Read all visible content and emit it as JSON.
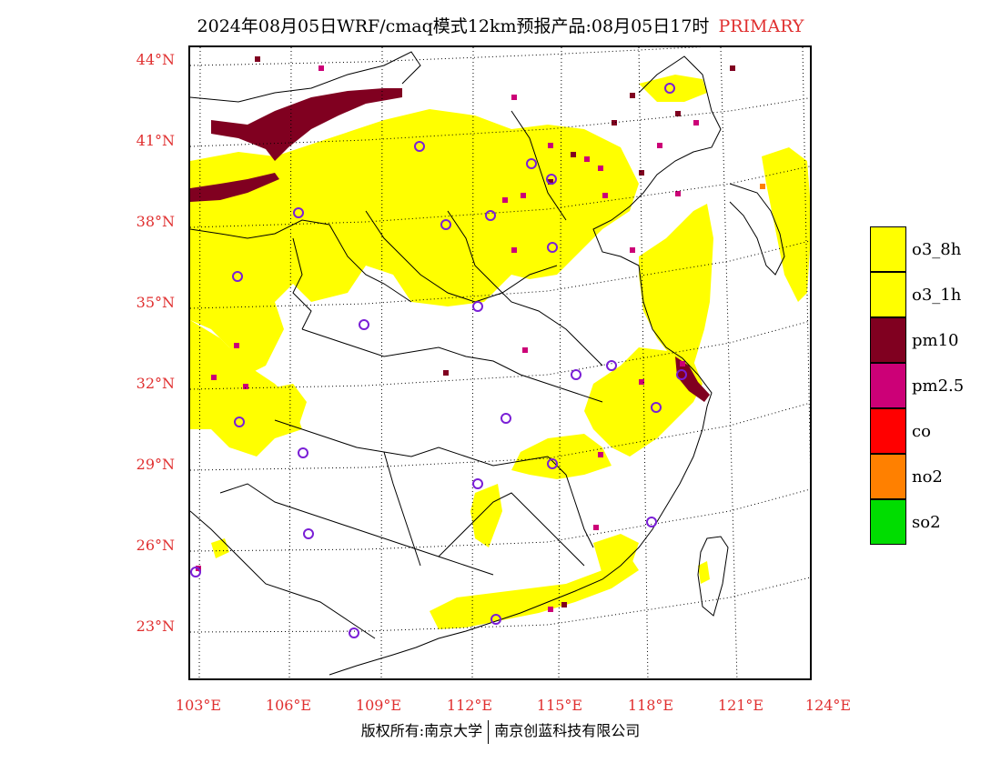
{
  "title": {
    "main": "2024年08月05日WRF/cmaq模式12km预报产品:08月05日17时",
    "tag": "PRIMARY"
  },
  "axes": {
    "lat_labels": [
      "44°N",
      "41°N",
      "38°N",
      "35°N",
      "32°N",
      "29°N",
      "26°N",
      "23°N"
    ],
    "lon_labels": [
      "103°E",
      "106°E",
      "109°E",
      "112°E",
      "115°E",
      "118°E",
      "121°E",
      "124°E"
    ]
  },
  "legend": [
    {
      "label": "o3_8h",
      "color": "#ffff00"
    },
    {
      "label": "o3_1h",
      "color": "#ffff00"
    },
    {
      "label": "pm10",
      "color": "#800020"
    },
    {
      "label": "pm2.5",
      "color": "#cc0077"
    },
    {
      "label": "co",
      "color": "#ff0000"
    },
    {
      "label": "no2",
      "color": "#ff8000"
    },
    {
      "label": "so2",
      "color": "#00dd00"
    }
  ],
  "colors": {
    "o3": "#ffff00",
    "pm10": "#800020",
    "pm25": "#cc0077",
    "no2": "#ff8000",
    "station": "#7a1fd6",
    "grid": "#000000"
  },
  "footer": {
    "left": "版权所有:南京大学",
    "right": "南京创蓝科技有限公司"
  }
}
